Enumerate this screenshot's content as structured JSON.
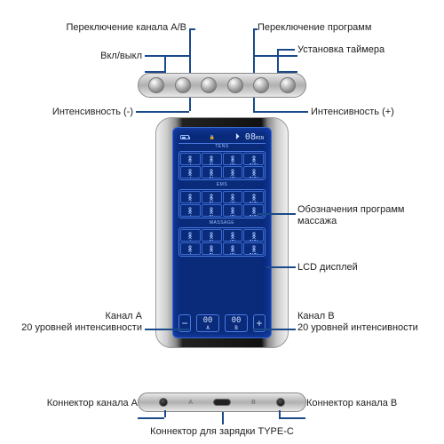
{
  "labels": {
    "top_channel_ab": "Переключение канала А/В",
    "top_onoff": "Вкл/выкл",
    "top_programs": "Переключение программ",
    "top_timer": "Установка таймера",
    "top_int_minus": "Интенсивность (-)",
    "top_int_plus": "Интенсивность (+)",
    "mid_programs": "Обозначения программ массажа",
    "mid_lcd": "LCD дисплей",
    "mid_ch_a": "Канал А\n20 уровней интенсивности",
    "mid_ch_b": "Канал В\n20 уровней интенсивности",
    "bot_conn_a": "Коннектор канала А",
    "bot_conn_b": "Коннектор канала В",
    "bot_usbc": "Коннектор для зарядки TYPE-C"
  },
  "display": {
    "timer_value": "08",
    "timer_unit": "MIN",
    "sections": [
      "TENS",
      "EMS",
      "MASSAGE"
    ],
    "channel_a_value": "00",
    "channel_a_label": "A",
    "channel_b_value": "00",
    "channel_b_label": "B",
    "minus": "−",
    "plus": "+"
  },
  "colors": {
    "line": "#1a4a8a",
    "screen_bg": "#0a2a7a",
    "screen_border": "#3a6ad0",
    "text_light": "#cde0ff"
  },
  "ports": {
    "a": "A",
    "b": "B"
  }
}
